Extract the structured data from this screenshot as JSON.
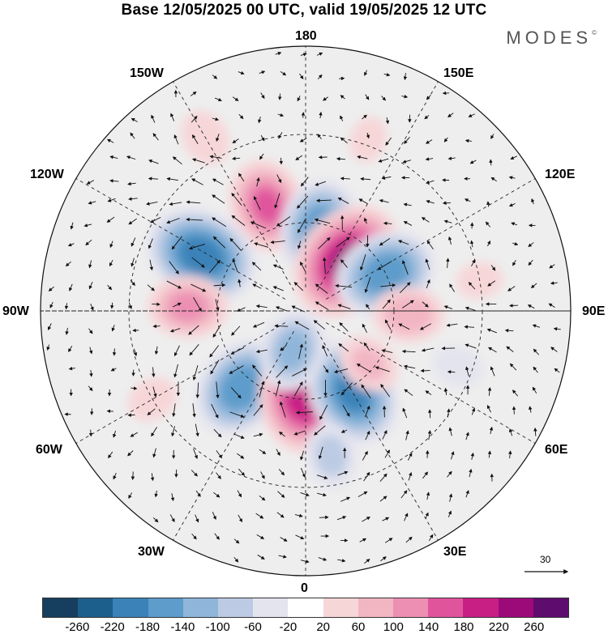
{
  "title": "Base 12/05/2025 00 UTC, valid 19/05/2025 12 UTC",
  "brand": "MODES",
  "brand_mark": "©",
  "longitude_labels": {
    "top": "180",
    "bottom": "0",
    "left": "90W",
    "right": "90E",
    "upper_left": "150W",
    "upper_right": "150E",
    "mid_upper_left": "120W",
    "mid_upper_right": "120E",
    "mid_lower_left": "60W",
    "mid_lower_right": "60E",
    "lower_left": "30W",
    "lower_right": "30E"
  },
  "vector_scale_label": "30",
  "colorbar": {
    "colors": [
      "#163e5e",
      "#1d5f8c",
      "#3a82b8",
      "#5d9ccb",
      "#8fb6da",
      "#bccbe3",
      "#e4e4ef",
      "#ffffff",
      "#f7d6d8",
      "#f2b6c2",
      "#ec8fb3",
      "#e0549c",
      "#c81f85",
      "#9c0a7a",
      "#5e0c6e"
    ],
    "tick_labels": [
      "-260",
      "-220",
      "-180",
      "-140",
      "-100",
      "-60",
      "-20",
      "20",
      "60",
      "100",
      "140",
      "180",
      "220",
      "260"
    ]
  },
  "anomalies": [
    {
      "lon": -160,
      "lat": 52,
      "value": 150
    },
    {
      "lon": 170,
      "lat": 62,
      "value": -170
    },
    {
      "lon": 140,
      "lat": 68,
      "value": 225
    },
    {
      "lon": -118,
      "lat": 50,
      "value": -205
    },
    {
      "lon": 115,
      "lat": 60,
      "value": -175
    },
    {
      "lon": -92,
      "lat": 50,
      "value": 115
    },
    {
      "lon": 88,
      "lat": 55,
      "value": 95
    },
    {
      "lon": -40,
      "lat": 56,
      "value": -175
    },
    {
      "lon": 0,
      "lat": 62,
      "value": 220
    },
    {
      "lon": 30,
      "lat": 58,
      "value": -190
    },
    {
      "lon": -18,
      "lat": 76,
      "value": -120
    },
    {
      "lon": 50,
      "lat": 62,
      "value": 75
    },
    {
      "lon": 10,
      "lat": 40,
      "value": -80
    },
    {
      "lon": 70,
      "lat": 35,
      "value": -50
    },
    {
      "lon": -150,
      "lat": 22,
      "value": 60
    },
    {
      "lon": 160,
      "lat": 28,
      "value": 40
    },
    {
      "lon": -60,
      "lat": 30,
      "value": 50
    },
    {
      "lon": 100,
      "lat": 30,
      "value": 40
    }
  ]
}
